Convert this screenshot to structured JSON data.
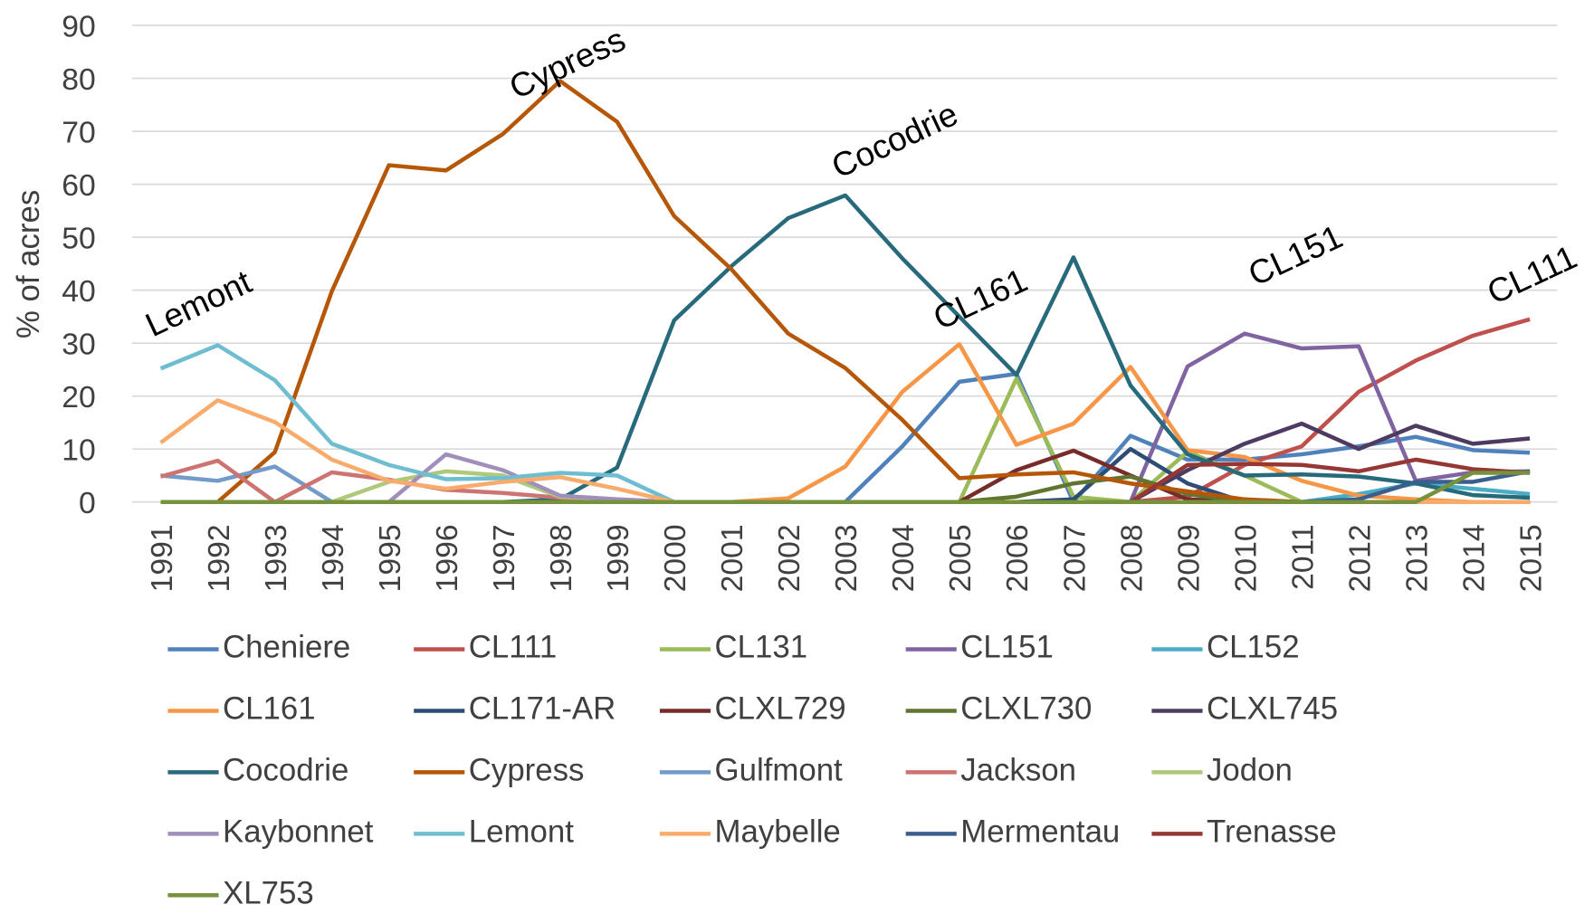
{
  "chart_data": {
    "type": "line",
    "y_label": "% of acres",
    "categories": [
      "1991",
      "1992",
      "1993",
      "1994",
      "1995",
      "1996",
      "1997",
      "1998",
      "1999",
      "2000",
      "2001",
      "2002",
      "2003",
      "2004",
      "2005",
      "2006",
      "2007",
      "2008",
      "2009",
      "2010",
      "2011",
      "2012",
      "2013",
      "2014",
      "2015"
    ],
    "ylim": [
      0,
      90
    ],
    "yticks": [
      0,
      10,
      20,
      30,
      40,
      50,
      60,
      70,
      80,
      90
    ],
    "grid": true,
    "legend": "bottom",
    "annotations": [
      "Lemont",
      "Cypress",
      "Cocodrie",
      "CL161",
      "CL151",
      "CL111"
    ],
    "series": [
      {
        "name": "Cheniere",
        "color": "#4f81bd",
        "values": [
          0,
          0,
          0,
          0,
          0,
          0,
          0,
          0,
          0,
          0,
          0,
          0,
          0,
          10.5,
          22.7,
          24.2,
          0,
          12.5,
          8,
          8,
          9,
          10.5,
          12.3,
          9.8,
          9.3
        ]
      },
      {
        "name": "CL111",
        "color": "#c0504d",
        "values": [
          0,
          0,
          0,
          0,
          0,
          0,
          0,
          0,
          0,
          0,
          0,
          0,
          0,
          0,
          0,
          0,
          0,
          0,
          1,
          7,
          10.5,
          20.8,
          26.7,
          31.4,
          34.5
        ]
      },
      {
        "name": "CL131",
        "color": "#9bbb59",
        "values": [
          0,
          0,
          0,
          0,
          0,
          0,
          0,
          0,
          0,
          0,
          0,
          0,
          0,
          0,
          0,
          23.3,
          1,
          0,
          9.5,
          5,
          0,
          0,
          0,
          0,
          0
        ]
      },
      {
        "name": "CL151",
        "color": "#8064a2",
        "values": [
          0,
          0,
          0,
          0,
          0,
          0,
          0,
          0,
          0,
          0,
          0,
          0,
          0,
          0,
          0,
          0,
          0,
          0,
          25.6,
          31.8,
          29,
          29.4,
          4,
          5.6,
          5.8
        ]
      },
      {
        "name": "CL152",
        "color": "#4bacc6",
        "values": [
          0,
          0,
          0,
          0,
          0,
          0,
          0,
          0,
          0,
          0,
          0,
          0,
          0,
          0,
          0,
          0,
          0,
          0,
          0,
          0,
          0,
          1.5,
          3.5,
          2.5,
          1.5
        ]
      },
      {
        "name": "CL161",
        "color": "#f79646",
        "values": [
          0,
          0,
          0,
          0,
          0,
          0,
          0,
          0,
          0,
          0,
          0,
          0.7,
          6.7,
          20.8,
          29.8,
          10.8,
          14.8,
          25.5,
          9.8,
          8.5,
          4,
          1.2,
          0.5,
          0,
          0
        ]
      },
      {
        "name": "CL171-AR",
        "color": "#2c4d75",
        "values": [
          0,
          0,
          0,
          0,
          0,
          0,
          0,
          0,
          0,
          0,
          0,
          0,
          0,
          0,
          0,
          0,
          0.5,
          10,
          3.5,
          0,
          0,
          0,
          0,
          0,
          0
        ]
      },
      {
        "name": "CLXL729",
        "color": "#772c2a",
        "values": [
          0,
          0,
          0,
          0,
          0,
          0,
          0,
          0,
          0,
          0,
          0,
          0,
          0,
          0,
          0,
          6,
          9.7,
          5,
          0.5,
          0,
          0,
          0,
          0,
          0,
          0
        ]
      },
      {
        "name": "CLXL730",
        "color": "#5f7530",
        "values": [
          0,
          0,
          0,
          0,
          0,
          0,
          0,
          0,
          0,
          0,
          0,
          0,
          0,
          0,
          0,
          1,
          3.5,
          4.8,
          1.5,
          0,
          0,
          0,
          0,
          0,
          0
        ]
      },
      {
        "name": "CLXL745",
        "color": "#4d3b62",
        "values": [
          0,
          0,
          0,
          0,
          0,
          0,
          0,
          0,
          0,
          0,
          0,
          0,
          0,
          0,
          0,
          0,
          0,
          0,
          6,
          11,
          14.8,
          10,
          14.4,
          11,
          12
        ]
      },
      {
        "name": "Cocodrie",
        "color": "#276a7c",
        "values": [
          0,
          0,
          0,
          0,
          0,
          0,
          0,
          0.5,
          6.5,
          34.3,
          44.5,
          53.6,
          57.9,
          46,
          35,
          24,
          46.2,
          22,
          9,
          5,
          5.2,
          4.8,
          3.5,
          1.3,
          0.8
        ]
      },
      {
        "name": "Cypress",
        "color": "#b65708",
        "values": [
          0,
          0,
          9.4,
          39.8,
          63.6,
          62.6,
          69.5,
          79.5,
          71.8,
          54,
          44,
          31.8,
          25.3,
          15.5,
          4.5,
          5.2,
          5.6,
          3.5,
          2,
          0.5,
          0,
          0,
          0,
          0,
          0
        ]
      },
      {
        "name": "Gulfmont",
        "color": "#729aca",
        "values": [
          5,
          4,
          6.7,
          0,
          0,
          0,
          0,
          0,
          0,
          0,
          0,
          0,
          0,
          0,
          0,
          0,
          0,
          0,
          0,
          0,
          0,
          0,
          0,
          0,
          0
        ]
      },
      {
        "name": "Jackson",
        "color": "#cd7371",
        "values": [
          4.8,
          7.8,
          0,
          5.6,
          4.2,
          2.3,
          1.7,
          0.8,
          0.3,
          0,
          0,
          0,
          0,
          0,
          0,
          0,
          0,
          0,
          0,
          0,
          0,
          0,
          0,
          0,
          0
        ]
      },
      {
        "name": "Jodon",
        "color": "#afc97a",
        "values": [
          0,
          0,
          0,
          0,
          3.8,
          5.8,
          5,
          1,
          0.5,
          0,
          0,
          0,
          0,
          0,
          0,
          0,
          0,
          0,
          0,
          0,
          0,
          0,
          0,
          0,
          0
        ]
      },
      {
        "name": "Kaybonnet",
        "color": "#a18fbb",
        "values": [
          0,
          0,
          0,
          0,
          0,
          9,
          6,
          1.2,
          0.5,
          0,
          0,
          0,
          0,
          0,
          0,
          0,
          0,
          0,
          0,
          0,
          0,
          0,
          0,
          0,
          0
        ]
      },
      {
        "name": "Lemont",
        "color": "#6fbdd1",
        "values": [
          25.2,
          29.6,
          23,
          11,
          7,
          4.3,
          4.5,
          5.5,
          5,
          0,
          0,
          0,
          0,
          0,
          0,
          0,
          0,
          0,
          0,
          0,
          0,
          0,
          0,
          0,
          0
        ]
      },
      {
        "name": "Maybelle",
        "color": "#f9ab6b",
        "values": [
          11.2,
          19.2,
          15.1,
          8,
          4,
          2.5,
          3.8,
          4.7,
          2.5,
          0,
          0,
          0,
          0,
          0,
          0,
          0,
          0,
          0,
          0,
          0,
          0,
          0,
          0,
          0,
          0
        ]
      },
      {
        "name": "Mermentau",
        "color": "#3a5f8e",
        "values": [
          0,
          0,
          0,
          0,
          0,
          0,
          0,
          0,
          0,
          0,
          0,
          0,
          0,
          0,
          0,
          0,
          0,
          0,
          0,
          0,
          0,
          0.5,
          3.8,
          3.8,
          5.8
        ]
      },
      {
        "name": "Trenasse",
        "color": "#953735",
        "values": [
          0,
          0,
          0,
          0,
          0,
          0,
          0,
          0,
          0,
          0,
          0,
          0,
          0,
          0,
          0,
          0,
          0,
          0,
          7,
          7.2,
          7,
          5.8,
          8,
          6.2,
          5.5
        ]
      },
      {
        "name": "XL753",
        "color": "#77923c",
        "values": [
          0,
          0,
          0,
          0,
          0,
          0,
          0,
          0,
          0,
          0,
          0,
          0,
          0,
          0,
          0,
          0,
          0,
          0,
          0,
          0,
          0,
          0,
          0,
          5.5,
          5.5
        ]
      }
    ]
  }
}
